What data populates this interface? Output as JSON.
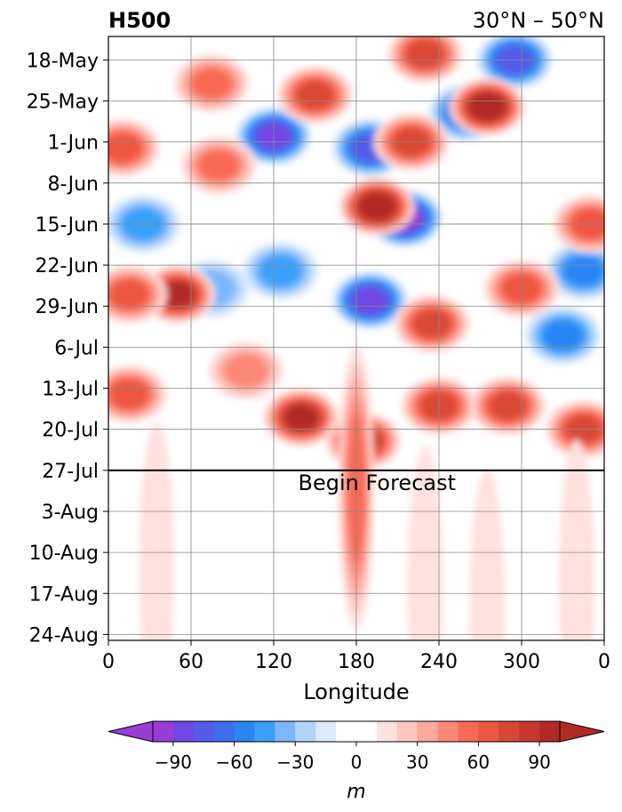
{
  "chart_data": {
    "type": "heatmap",
    "title": "H500",
    "subtitle": "30°N – 50°N",
    "xlabel": "Longitude",
    "ylabel": "",
    "x_ticks": [
      "0",
      "60",
      "120",
      "180",
      "240",
      "300",
      "0"
    ],
    "x_tick_values": [
      0,
      60,
      120,
      180,
      240,
      300,
      360
    ],
    "xlim": [
      0,
      360
    ],
    "y_ticks": [
      "18-May",
      "25-May",
      "1-Jun",
      "8-Jun",
      "15-Jun",
      "22-Jun",
      "29-Jun",
      "6-Jul",
      "13-Jul",
      "20-Jul",
      "27-Jul",
      "3-Aug",
      "10-Aug",
      "17-Aug",
      "24-Aug"
    ],
    "y_tick_values": [
      "2025-05-18",
      "2025-05-25",
      "2025-06-01",
      "2025-06-08",
      "2025-06-15",
      "2025-06-22",
      "2025-06-29",
      "2025-07-06",
      "2025-07-13",
      "2025-07-20",
      "2025-07-27",
      "2025-08-03",
      "2025-08-10",
      "2025-08-17",
      "2025-08-24"
    ],
    "ylim": [
      "2025-05-14",
      "2025-08-25"
    ],
    "y_inverted": true,
    "grid": true,
    "annotation": {
      "text": "Begin Forecast",
      "date": "2025-07-27"
    },
    "colorbar": {
      "label": "m",
      "ticks": [
        -90,
        -60,
        -30,
        0,
        30,
        60,
        90
      ],
      "levels": [
        -100,
        -90,
        -80,
        -70,
        -60,
        -50,
        -40,
        -30,
        -20,
        -10,
        10,
        20,
        30,
        40,
        50,
        60,
        70,
        80,
        90,
        100
      ],
      "colors": [
        "#9a3cd6",
        "#7147e6",
        "#555ce8",
        "#3f6df0",
        "#2a86f5",
        "#3aa0fb",
        "#7ab8fb",
        "#b0d5fb",
        "#dbeafc",
        "#ffffff",
        "#ffe1df",
        "#ffc6bf",
        "#fda89d",
        "#fc8877",
        "#f86a55",
        "#ec5742",
        "#d94836",
        "#c6382d",
        "#b12a26"
      ],
      "extend": "both"
    },
    "features": [
      {
        "lon": 120,
        "date": "2025-05-31",
        "value": -85
      },
      {
        "lon": 190,
        "date": "2025-06-02",
        "value": -75
      },
      {
        "lon": 215,
        "date": "2025-06-14",
        "value": -90
      },
      {
        "lon": 190,
        "date": "2025-06-28",
        "value": -85
      },
      {
        "lon": 295,
        "date": "2025-05-18",
        "value": -70
      },
      {
        "lon": 260,
        "date": "2025-05-27",
        "value": -60
      },
      {
        "lon": 345,
        "date": "2025-06-23",
        "value": -55
      },
      {
        "lon": 330,
        "date": "2025-07-04",
        "value": -55
      },
      {
        "lon": 25,
        "date": "2025-06-15",
        "value": -40
      },
      {
        "lon": 125,
        "date": "2025-06-23",
        "value": -40
      },
      {
        "lon": 75,
        "date": "2025-06-26",
        "value": -35
      },
      {
        "lon": 50,
        "date": "2025-06-27",
        "value": 95
      },
      {
        "lon": 195,
        "date": "2025-06-12",
        "value": 100
      },
      {
        "lon": 275,
        "date": "2025-05-26",
        "value": 100
      },
      {
        "lon": 150,
        "date": "2025-05-24",
        "value": 75
      },
      {
        "lon": 230,
        "date": "2025-05-17",
        "value": 70
      },
      {
        "lon": 220,
        "date": "2025-06-01",
        "value": 70
      },
      {
        "lon": 235,
        "date": "2025-07-02",
        "value": 75
      },
      {
        "lon": 140,
        "date": "2025-07-18",
        "value": 90
      },
      {
        "lon": 185,
        "date": "2025-07-22",
        "value": 80
      },
      {
        "lon": 240,
        "date": "2025-07-16",
        "value": 70
      },
      {
        "lon": 290,
        "date": "2025-07-16",
        "value": 70
      },
      {
        "lon": 345,
        "date": "2025-07-20",
        "value": 70
      },
      {
        "lon": 15,
        "date": "2025-07-14",
        "value": 65
      },
      {
        "lon": 10,
        "date": "2025-06-02",
        "value": 60
      },
      {
        "lon": 15,
        "date": "2025-06-27",
        "value": 60
      },
      {
        "lon": 75,
        "date": "2025-05-22",
        "value": 55
      },
      {
        "lon": 80,
        "date": "2025-06-05",
        "value": 55
      },
      {
        "lon": 300,
        "date": "2025-06-26",
        "value": 60
      },
      {
        "lon": 350,
        "date": "2025-06-15",
        "value": 60
      },
      {
        "lon": 180,
        "date": "2025-07-30",
        "value": 55
      },
      {
        "lon": 100,
        "date": "2025-07-10",
        "value": 45
      },
      {
        "lon": 35,
        "date": "2025-08-12",
        "value": 15
      },
      {
        "lon": 230,
        "date": "2025-08-16",
        "value": 15
      },
      {
        "lon": 275,
        "date": "2025-08-20",
        "value": 12
      },
      {
        "lon": 340,
        "date": "2025-08-15",
        "value": 12
      }
    ]
  }
}
